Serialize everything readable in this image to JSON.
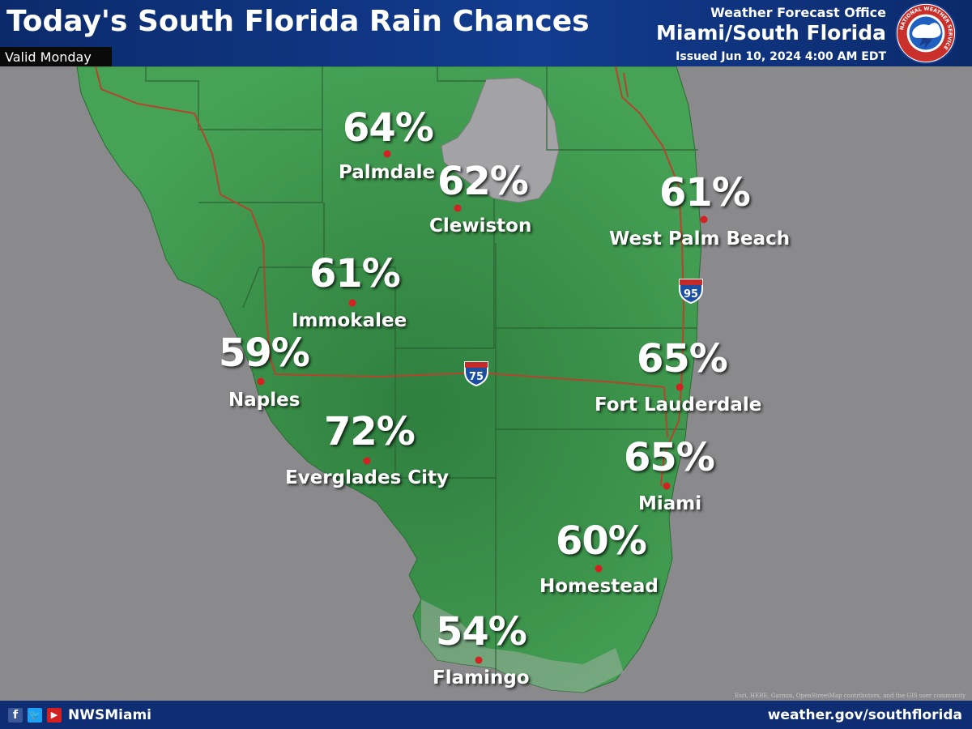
{
  "header": {
    "title": "Today's South Florida Rain Chances",
    "subtitle": "Valid Monday",
    "office_label": "Weather Forecast Office",
    "office_name": "Miami/South Florida",
    "issued": "Issued Jun 10, 2024 4:00 AM EDT",
    "logo_ring_text": "NATIONAL WEATHER SERVICE"
  },
  "map": {
    "cities": [
      {
        "name": "Palmdale",
        "rain_chance": "64%"
      },
      {
        "name": "Clewiston",
        "rain_chance": "62%"
      },
      {
        "name": "West Palm Beach",
        "rain_chance": "61%"
      },
      {
        "name": "Immokalee",
        "rain_chance": "61%"
      },
      {
        "name": "Naples",
        "rain_chance": "59%"
      },
      {
        "name": "Fort Lauderdale",
        "rain_chance": "65%"
      },
      {
        "name": "Everglades City",
        "rain_chance": "72%"
      },
      {
        "name": "Miami",
        "rain_chance": "65%"
      },
      {
        "name": "Homestead",
        "rain_chance": "60%"
      },
      {
        "name": "Flamingo",
        "rain_chance": "54%"
      }
    ],
    "highways": [
      {
        "name": "Interstate 75",
        "number": "75"
      },
      {
        "name": "Interstate 95",
        "number": "95"
      }
    ],
    "colors": {
      "land": "#3f9a4e",
      "land_dark": "#2e7d3e",
      "water": "#8a8a8c",
      "lake": "#a3a3a6",
      "roads": "#b5442e",
      "city_dot": "#d42020"
    },
    "attribution": "Esri, HERE, Garmin, OpenStreetMap contributors, and the GIS user community"
  },
  "footer": {
    "social_icons": [
      "facebook-icon",
      "twitter-icon",
      "youtube-icon"
    ],
    "handle": "NWSMiami",
    "website": "weather.gov/southflorida"
  }
}
